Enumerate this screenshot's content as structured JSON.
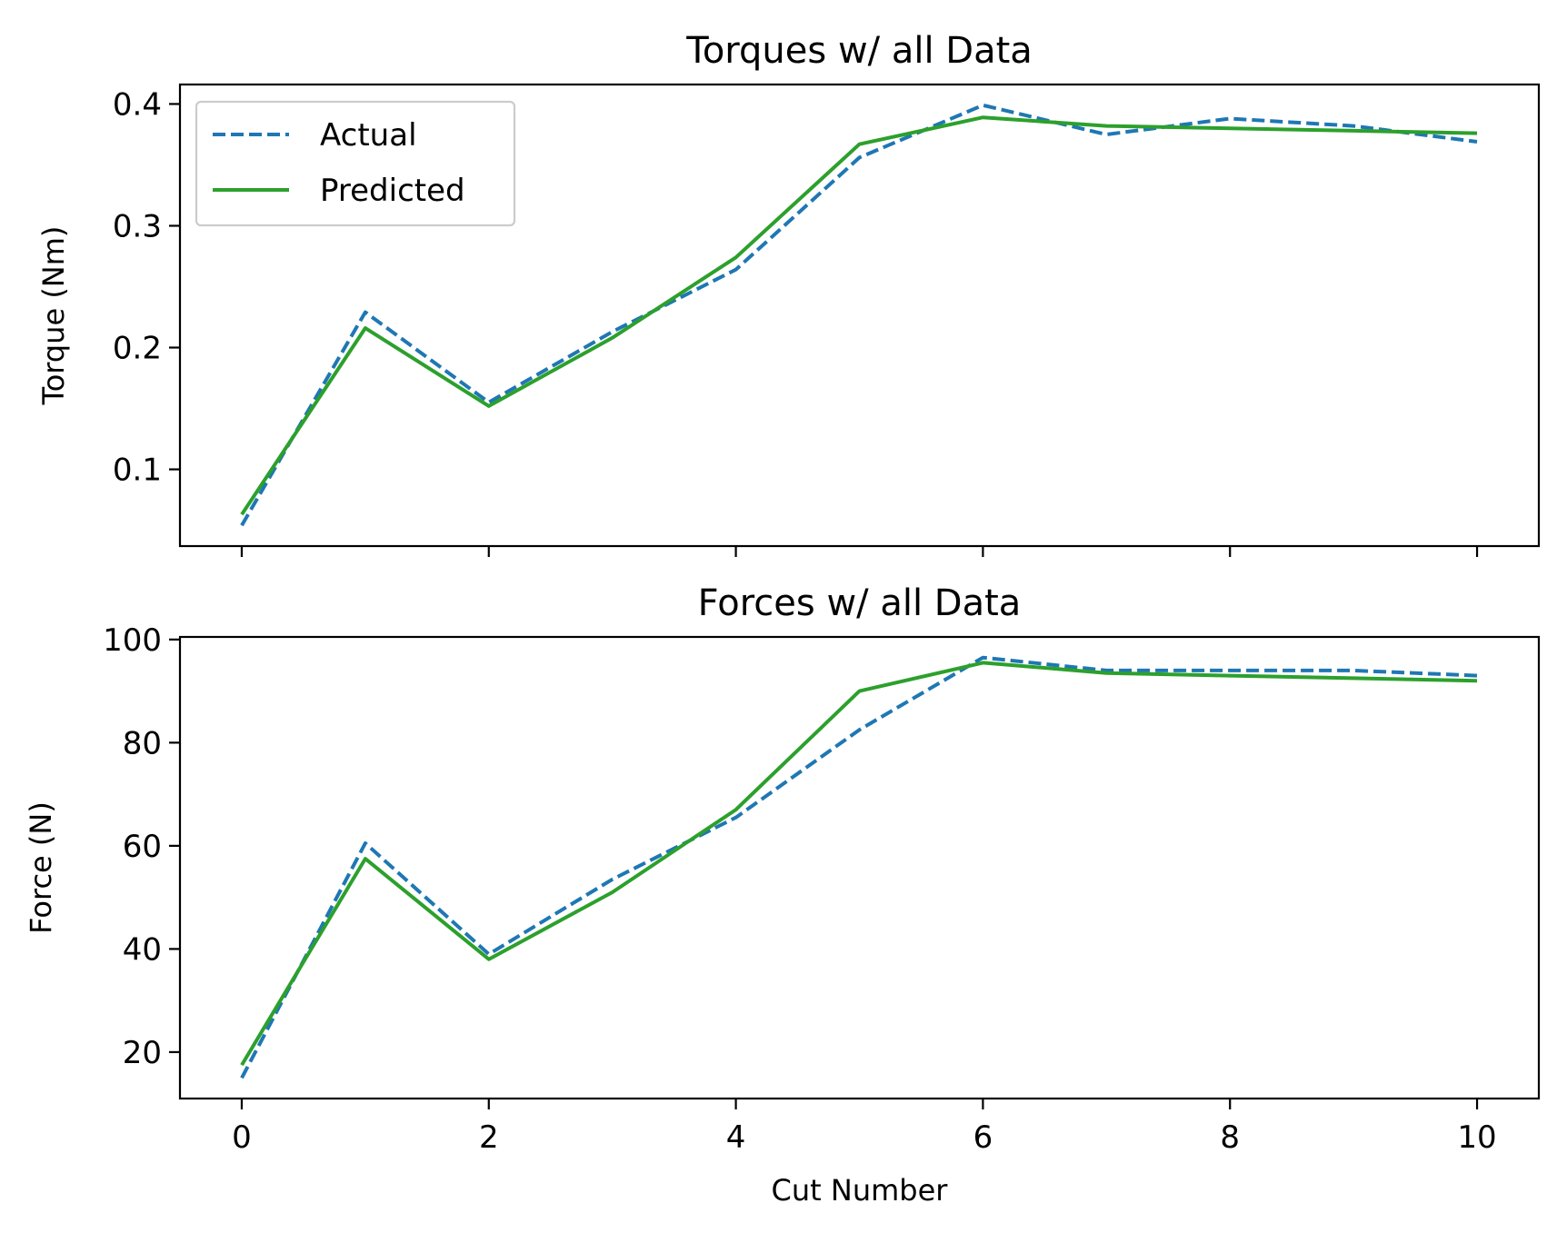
{
  "chart_data": [
    {
      "type": "line",
      "title": "Torques w/ all Data",
      "xlabel": "",
      "ylabel": "Torque (Nm)",
      "xlim": [
        -0.5,
        10.5
      ],
      "ylim": [
        0.037,
        0.416
      ],
      "xticks": [
        0,
        2,
        4,
        6,
        8,
        10
      ],
      "show_xtick_labels": false,
      "yticks": [
        0.1,
        0.2,
        0.3,
        0.4
      ],
      "ytick_labels": [
        "0.1",
        "0.2",
        "0.3",
        "0.4"
      ],
      "legend": {
        "position": "upper-left",
        "entries": [
          "Actual",
          "Predicted"
        ]
      },
      "grid": false,
      "x": [
        0,
        1,
        2,
        3,
        4,
        5,
        6,
        7,
        8,
        9,
        10
      ],
      "series": [
        {
          "name": "Actual",
          "style": "dashed",
          "color": "#1f77b4",
          "values": [
            0.054,
            0.229,
            0.155,
            0.213,
            0.264,
            0.356,
            0.399,
            0.375,
            0.388,
            0.382,
            0.369
          ]
        },
        {
          "name": "Predicted",
          "style": "solid",
          "color": "#2ca02c",
          "values": [
            0.063,
            0.216,
            0.152,
            0.208,
            0.274,
            0.367,
            0.389,
            0.382,
            0.38,
            0.378,
            0.376
          ]
        }
      ]
    },
    {
      "type": "line",
      "title": "Forces w/ all Data",
      "xlabel": "Cut Number",
      "ylabel": "Force (N)",
      "xlim": [
        -0.5,
        10.5
      ],
      "ylim": [
        11.0,
        100.5
      ],
      "xticks": [
        0,
        2,
        4,
        6,
        8,
        10
      ],
      "show_xtick_labels": true,
      "xtick_labels": [
        "0",
        "2",
        "4",
        "6",
        "8",
        "10"
      ],
      "yticks": [
        20,
        40,
        60,
        80,
        100
      ],
      "ytick_labels": [
        "20",
        "40",
        "60",
        "80",
        "100"
      ],
      "grid": false,
      "x": [
        0,
        1,
        2,
        3,
        4,
        5,
        6,
        7,
        8,
        9,
        10
      ],
      "series": [
        {
          "name": "Actual",
          "style": "dashed",
          "color": "#1f77b4",
          "values": [
            15.0,
            60.5,
            39.0,
            53.5,
            65.5,
            82.5,
            96.5,
            94.0,
            94.0,
            94.0,
            93.0
          ]
        },
        {
          "name": "Predicted",
          "style": "solid",
          "color": "#2ca02c",
          "values": [
            17.5,
            57.5,
            38.0,
            51.0,
            67.0,
            90.0,
            95.5,
            93.5,
            93.0,
            92.5,
            92.0
          ]
        }
      ]
    }
  ]
}
